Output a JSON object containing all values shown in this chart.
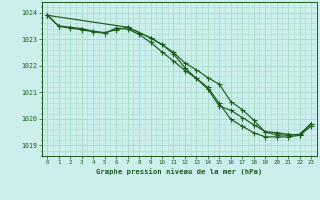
{
  "title": "Graphe pression niveau de la mer (hPa)",
  "bg_color": "#cceeed",
  "grid_color": "#aaddcc",
  "line_color": "#1a5c1a",
  "marker_color": "#1a5c1a",
  "xlim": [
    -0.5,
    23.5
  ],
  "ylim": [
    1018.6,
    1024.4
  ],
  "yticks": [
    1019,
    1020,
    1021,
    1022,
    1023,
    1024
  ],
  "xticks": [
    0,
    1,
    2,
    3,
    4,
    5,
    6,
    7,
    8,
    9,
    10,
    11,
    12,
    13,
    14,
    15,
    16,
    17,
    18,
    19,
    20,
    21,
    22,
    23
  ],
  "series1_x": [
    0,
    1,
    2,
    3,
    4,
    5,
    6,
    7,
    8,
    9,
    10,
    11,
    12,
    13,
    14,
    15,
    16,
    17,
    18,
    19,
    20,
    21,
    22,
    23
  ],
  "series1_y": [
    1023.9,
    1023.5,
    1023.45,
    1023.4,
    1023.3,
    1023.25,
    1023.35,
    1023.45,
    1023.25,
    1023.05,
    1022.8,
    1022.5,
    1022.1,
    1021.85,
    1021.55,
    1021.3,
    1020.65,
    1020.35,
    1019.95,
    1019.5,
    1019.4,
    1019.38,
    1019.42,
    1019.82
  ],
  "series2_x": [
    0,
    1,
    2,
    3,
    4,
    5,
    6,
    7,
    8,
    9,
    10,
    11,
    12,
    13,
    14,
    15,
    16,
    17,
    18,
    19,
    20,
    21,
    22,
    23
  ],
  "series2_y": [
    1023.9,
    1023.48,
    1023.42,
    1023.35,
    1023.28,
    1023.22,
    1023.42,
    1023.38,
    1023.18,
    1022.88,
    1022.52,
    1022.18,
    1021.82,
    1021.52,
    1021.18,
    1020.58,
    1019.98,
    1019.72,
    1019.48,
    1019.32,
    1019.32,
    1019.32,
    1019.38,
    1019.72
  ],
  "series3_x": [
    0,
    7,
    9,
    10,
    11,
    12,
    13,
    14,
    15,
    16,
    17,
    18,
    19,
    20,
    21,
    22,
    23
  ],
  "series3_y": [
    1023.9,
    1023.45,
    1023.05,
    1022.8,
    1022.45,
    1021.92,
    1021.52,
    1021.12,
    1020.48,
    1020.32,
    1020.05,
    1019.78,
    1019.52,
    1019.48,
    1019.42,
    1019.38,
    1019.82
  ]
}
